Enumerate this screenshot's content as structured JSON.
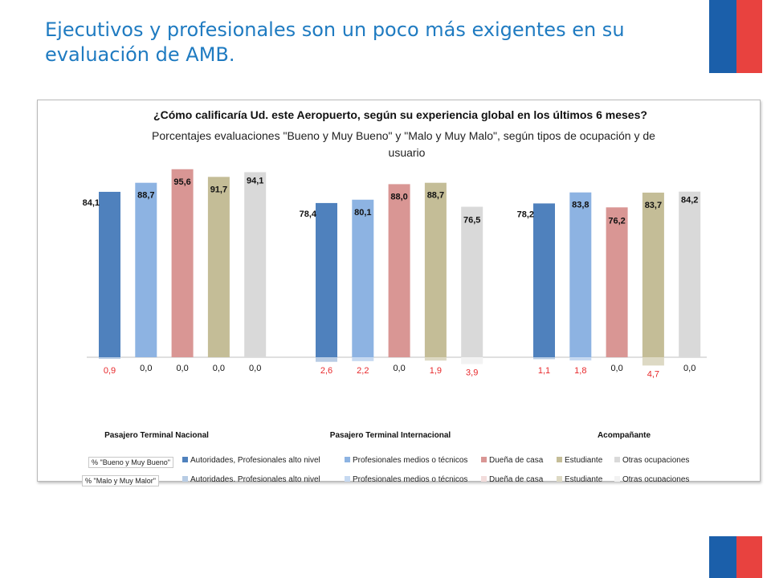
{
  "slide": {
    "title_line1": "Ejecutivos y profesionales son un poco más exigentes en su",
    "title_line2": "evaluación de AMB."
  },
  "colors": {
    "title": "#1f7bc1",
    "flag_blue": "#1b5faa",
    "flag_red": "#e8423f",
    "negative_label": "#e8282b"
  },
  "legend": {
    "row1_label": "% \"Bueno y Muy Bueno\"",
    "row2_label": "% \"Malo y Muy Malor\""
  },
  "chart_data": {
    "type": "bar",
    "title": "¿Cómo calificaría Ud. este Aeropuerto, según su experiencia global en los últimos 6 meses?",
    "subtitle_line1": "Porcentajes evaluaciones \"Bueno y Muy Bueno\" y \"Malo y Muy Malo\",  según tipos de ocupación y de",
    "subtitle_line2": "usuario",
    "categories": [
      "Pasajero Terminal Nacional",
      "Pasajero Terminal Internacional",
      "Acompañante"
    ],
    "series_names": [
      "Autoridades, Profesionales alto nivel",
      "Profesionales medios o técnicos",
      "Dueña de casa",
      "Estudiante",
      "Otras ocupaciones"
    ],
    "series_colors_good": [
      "#4f81bd",
      "#8db3e2",
      "#d99694",
      "#c4bd97",
      "#d9d9d9"
    ],
    "series_colors_bad": [
      "#b8cce4",
      "#c6d9f1",
      "#f2dcdb",
      "#ddd9c4",
      "#f2f2f2"
    ],
    "good": [
      [
        84.1,
        88.7,
        95.6,
        91.7,
        94.1
      ],
      [
        78.4,
        80.1,
        88.0,
        88.7,
        76.5
      ],
      [
        78.2,
        83.8,
        76.2,
        83.7,
        84.2
      ]
    ],
    "good_labels": [
      [
        "84,1",
        "88,7",
        "95,6",
        "91,7",
        "94,1"
      ],
      [
        "78,4",
        "80,1",
        "88,0",
        "88,7",
        "76,5"
      ],
      [
        "78,2",
        "83,8",
        "76,2",
        "83,7",
        "84,2"
      ]
    ],
    "bad": [
      [
        0.9,
        0.0,
        0.0,
        0.0,
        0.0
      ],
      [
        2.6,
        2.2,
        0.0,
        1.9,
        3.9
      ],
      [
        1.1,
        1.8,
        0.0,
        4.7,
        0.0
      ]
    ],
    "bad_labels": [
      [
        "0,9",
        "0,0",
        "0,0",
        "0,0",
        "0,0"
      ],
      [
        "2,6",
        "2,2",
        "0,0",
        "1,9",
        "3,9"
      ],
      [
        "1,1",
        "1,8",
        "0,0",
        "4,7",
        "0,0"
      ]
    ],
    "legend_position": "bottom",
    "grid": false
  }
}
